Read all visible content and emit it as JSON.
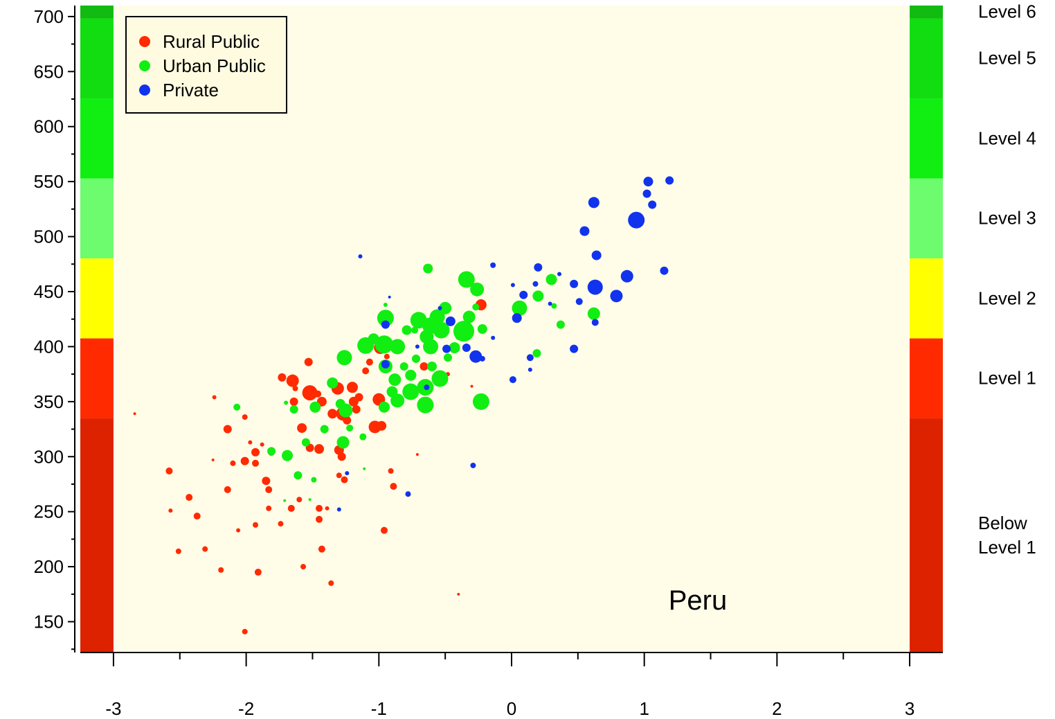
{
  "chart_data": {
    "type": "scatter",
    "xlim": [
      -3.25,
      3.25
    ],
    "ylim": [
      122,
      710
    ],
    "xticks": [
      -3,
      -2,
      -1,
      0,
      1,
      2,
      3
    ],
    "xminor_ticks": [
      -2.5,
      -1.5,
      -0.5,
      0.5,
      1.5,
      2.5
    ],
    "yticks": [
      150,
      200,
      250,
      300,
      350,
      400,
      450,
      500,
      550,
      600,
      650,
      700
    ],
    "yminor_ticks": [
      125,
      175,
      225,
      275,
      325,
      375,
      425,
      475,
      525,
      575,
      625,
      675
    ],
    "legend": "upper left",
    "annotation": "Peru",
    "background": "#fffde8",
    "bands": [
      {
        "name": "Below Level 1",
        "from": null,
        "to": 334.75,
        "color": "#dd2200"
      },
      {
        "name": "Level 1",
        "from": 334.75,
        "to": 407.47,
        "color": "#ff2a00"
      },
      {
        "name": "Level 2",
        "from": 407.47,
        "to": 480.18,
        "color": "#ffff00"
      },
      {
        "name": "Level 3",
        "from": 480.18,
        "to": 552.89,
        "color": "#6dfc6d"
      },
      {
        "name": "Level 4",
        "from": 552.89,
        "to": 625.61,
        "color": "#11ee11"
      },
      {
        "name": "Level 5",
        "from": 625.61,
        "to": 698.32,
        "color": "#11dd11"
      },
      {
        "name": "Level 6",
        "from": 698.32,
        "to": null,
        "color": "#11bb11"
      }
    ],
    "series": [
      {
        "name": "Rural Public",
        "color": "#ff2a00",
        "x": [
          -2.84,
          -2.58,
          -2.43,
          -2.37,
          -2.57,
          -2.51,
          -2.31,
          -2.24,
          -2.25,
          -2.19,
          -2.14,
          -2.14,
          -2.1,
          -2.06,
          -2.01,
          -2.01,
          -2.01,
          -1.97,
          -1.93,
          -1.93,
          -1.93,
          -1.91,
          -1.88,
          -1.85,
          -1.83,
          -1.83,
          -1.81,
          -1.74,
          -1.73,
          -1.7,
          -1.66,
          -1.65,
          -1.64,
          -1.63,
          -1.6,
          -1.58,
          -1.57,
          -1.53,
          -1.52,
          -1.52,
          -1.46,
          -1.45,
          -1.45,
          -1.45,
          -1.43,
          -1.43,
          -1.39,
          -1.36,
          -1.35,
          -1.31,
          -1.3,
          -1.28,
          -1.27,
          -1.3,
          -1.26,
          -1.24,
          -1.2,
          -1.19,
          -1.17,
          -1.15,
          -1.1,
          -1.07,
          -1.03,
          -1.0,
          -0.99,
          -0.98,
          -0.96,
          -0.94,
          -0.91,
          -0.89,
          -0.71,
          -0.66,
          -0.48,
          -0.4,
          -0.3,
          -0.23
        ],
        "values": [
          339,
          287,
          263,
          246,
          251,
          214,
          216,
          354,
          297,
          197,
          325,
          270,
          294,
          233,
          336,
          296,
          141,
          313,
          294,
          238,
          304,
          195,
          311,
          278,
          270,
          253,
          304,
          239,
          372,
          304,
          253,
          369,
          350,
          362,
          261,
          326,
          200,
          386,
          358,
          308,
          357,
          307,
          253,
          243,
          350,
          216,
          253,
          185,
          339,
          362,
          306,
          300,
          339,
          283,
          279,
          333,
          363,
          350,
          343,
          354,
          378,
          386,
          327,
          352,
          399,
          328,
          233,
          391,
          287,
          273,
          302,
          382,
          375,
          175,
          364,
          438
        ],
        "sizes": [
          2,
          5,
          5,
          5,
          3,
          4,
          4,
          3,
          2,
          4,
          6,
          5,
          4,
          3,
          4,
          6,
          4,
          3,
          5,
          4,
          6,
          5,
          3,
          6,
          5,
          4,
          5,
          4,
          6,
          2,
          5,
          9,
          6,
          4,
          4,
          7,
          4,
          6,
          11,
          6,
          5,
          7,
          5,
          5,
          7,
          5,
          3,
          4,
          7,
          9,
          7,
          6,
          10,
          4,
          5,
          6,
          8,
          7,
          6,
          6,
          5,
          5,
          9,
          9,
          9,
          7,
          5,
          4,
          4,
          5,
          2,
          6,
          3,
          2,
          2,
          8
        ]
      },
      {
        "name": "Urban Public",
        "color": "#11ee11",
        "x": [
          -2.07,
          -1.81,
          -1.71,
          -1.7,
          -1.69,
          -1.64,
          -1.61,
          -1.55,
          -1.52,
          -1.49,
          -1.48,
          -1.41,
          -1.35,
          -1.29,
          -1.27,
          -1.26,
          -1.25,
          -1.22,
          -1.12,
          -1.11,
          -1.1,
          -1.04,
          -0.99,
          -0.96,
          -0.96,
          -0.95,
          -0.95,
          -0.95,
          -0.9,
          -0.88,
          -0.86,
          -0.86,
          -0.81,
          -0.79,
          -0.76,
          -0.76,
          -0.73,
          -0.72,
          -0.7,
          -0.65,
          -0.65,
          -0.64,
          -0.63,
          -0.61,
          -0.61,
          -0.6,
          -0.56,
          -0.54,
          -0.53,
          -0.5,
          -0.48,
          -0.43,
          -0.39,
          -0.36,
          -0.34,
          -0.32,
          -0.27,
          -0.26,
          -0.23,
          -0.22,
          0.06,
          0.19,
          0.2,
          0.3,
          0.32,
          0.37,
          0.62
        ],
        "values": [
          345,
          305,
          260,
          349,
          301,
          343,
          283,
          313,
          261,
          279,
          345,
          325,
          367,
          348,
          313,
          390,
          342,
          326,
          318,
          289,
          401,
          407,
          400,
          402,
          345,
          382,
          438,
          426,
          359,
          370,
          400,
          351,
          382,
          415,
          359,
          374,
          415,
          389,
          424,
          347,
          363,
          409,
          471,
          400,
          419,
          382,
          427,
          371,
          415,
          435,
          390,
          399,
          410,
          414,
          461,
          427,
          436,
          452,
          350,
          416,
          435,
          394,
          446,
          461,
          437,
          420,
          430
        ],
        "sizes": [
          5,
          6,
          2,
          3,
          8,
          6,
          6,
          6,
          2,
          4,
          8,
          6,
          8,
          7,
          9,
          11,
          10,
          5,
          5,
          2,
          12,
          8,
          7,
          13,
          8,
          10,
          3,
          12,
          8,
          9,
          11,
          10,
          6,
          7,
          12,
          8,
          5,
          6,
          12,
          12,
          12,
          10,
          7,
          11,
          12,
          7,
          11,
          12,
          12,
          9,
          6,
          8,
          7,
          15,
          12,
          9,
          5,
          10,
          12,
          7,
          11,
          6,
          8,
          8,
          4,
          6,
          9
        ]
      },
      {
        "name": "Private",
        "color": "#1133ee",
        "x": [
          -1.14,
          -1.3,
          -1.24,
          -0.95,
          -0.95,
          -0.92,
          -0.78,
          -0.71,
          -0.64,
          -0.54,
          -0.49,
          -0.46,
          -0.34,
          -0.29,
          -0.27,
          -0.22,
          -0.14,
          -0.14,
          0.01,
          0.01,
          0.04,
          0.09,
          0.14,
          0.14,
          0.18,
          0.2,
          0.29,
          0.36,
          0.47,
          0.47,
          0.51,
          0.55,
          0.62,
          0.64,
          0.63,
          0.63,
          0.79,
          0.87,
          0.94,
          1.02,
          1.03,
          1.06,
          1.15,
          1.19
        ],
        "values": [
          482,
          252,
          285,
          420,
          384,
          445,
          266,
          400,
          363,
          435,
          398,
          423,
          399,
          292,
          391,
          389,
          474,
          408,
          456,
          370,
          426,
          447,
          390,
          379,
          457,
          472,
          439,
          466,
          457,
          398,
          441,
          505,
          531,
          483,
          454,
          422,
          446,
          464,
          515,
          539,
          550,
          529,
          469,
          551
        ],
        "sizes": [
          3,
          3,
          3,
          6,
          6,
          2,
          4,
          3,
          4,
          3,
          6,
          7,
          6,
          4,
          9,
          4,
          4,
          3,
          3,
          5,
          7,
          6,
          5,
          3,
          4,
          6,
          3,
          3,
          6,
          6,
          5,
          7,
          8,
          7,
          11,
          5,
          9,
          9,
          12,
          6,
          7,
          6,
          6,
          6
        ]
      }
    ]
  }
}
